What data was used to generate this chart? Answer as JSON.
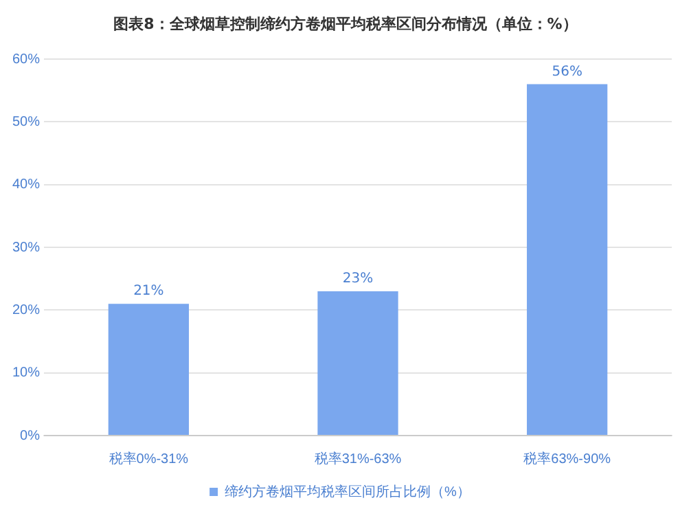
{
  "chart_data": {
    "type": "bar",
    "title": "图表8：全球烟草控制缔约方卷烟平均税率区间分布情况（单位：%）",
    "categories": [
      "税率0%-31%",
      "税率31%-63%",
      "税率63%-90%"
    ],
    "series": [
      {
        "name": "缔约方卷烟平均税率区间所占比例（%）",
        "color": "#7aa7ee",
        "values": [
          21,
          23,
          56
        ],
        "value_labels": [
          "21%",
          "23%",
          "56%"
        ]
      }
    ],
    "ylim": [
      0,
      60
    ],
    "yticks": [
      {
        "value": 0,
        "label": "0%"
      },
      {
        "value": 10,
        "label": "10%"
      },
      {
        "value": 20,
        "label": "20%"
      },
      {
        "value": 30,
        "label": "30%"
      },
      {
        "value": 40,
        "label": "40%"
      },
      {
        "value": 50,
        "label": "50%"
      },
      {
        "value": 60,
        "label": "60%"
      }
    ],
    "grid": "y",
    "legend": "bottom"
  }
}
